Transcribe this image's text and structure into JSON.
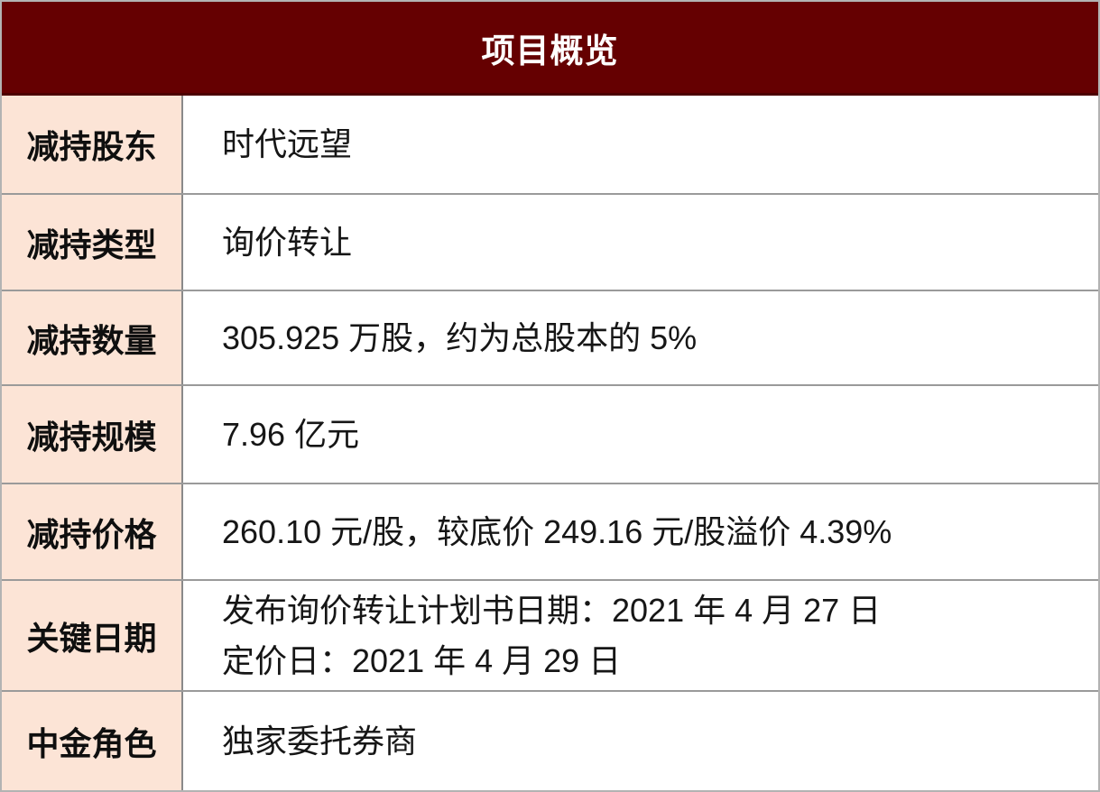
{
  "title": "项目概览",
  "rows": [
    {
      "label": "减持股东",
      "value": "时代远望"
    },
    {
      "label": "减持类型",
      "value": "询价转让"
    },
    {
      "label": "减持数量",
      "value": "305.925 万股，约为总股本的 5%"
    },
    {
      "label": "减持规模",
      "value": "7.96 亿元"
    },
    {
      "label": "减持价格",
      "value": "260.10 元/股，较底价 249.16 元/股溢价 4.39%"
    },
    {
      "label": "关键日期",
      "lines": [
        "发布询价转让计划书日期：2021 年 4 月 27 日",
        "定价日：2021 年 4 月 29 日"
      ]
    },
    {
      "label": "中金角色",
      "value": "独家委托券商"
    }
  ],
  "colors": {
    "header_bg": "#650001",
    "header_text": "#ffffff",
    "label_bg": "#fce4d6",
    "row_border": "#9a9a9a",
    "column_border": "#8a8a8a",
    "outer_border": "#b3b3b3",
    "body_text": "#161616"
  }
}
